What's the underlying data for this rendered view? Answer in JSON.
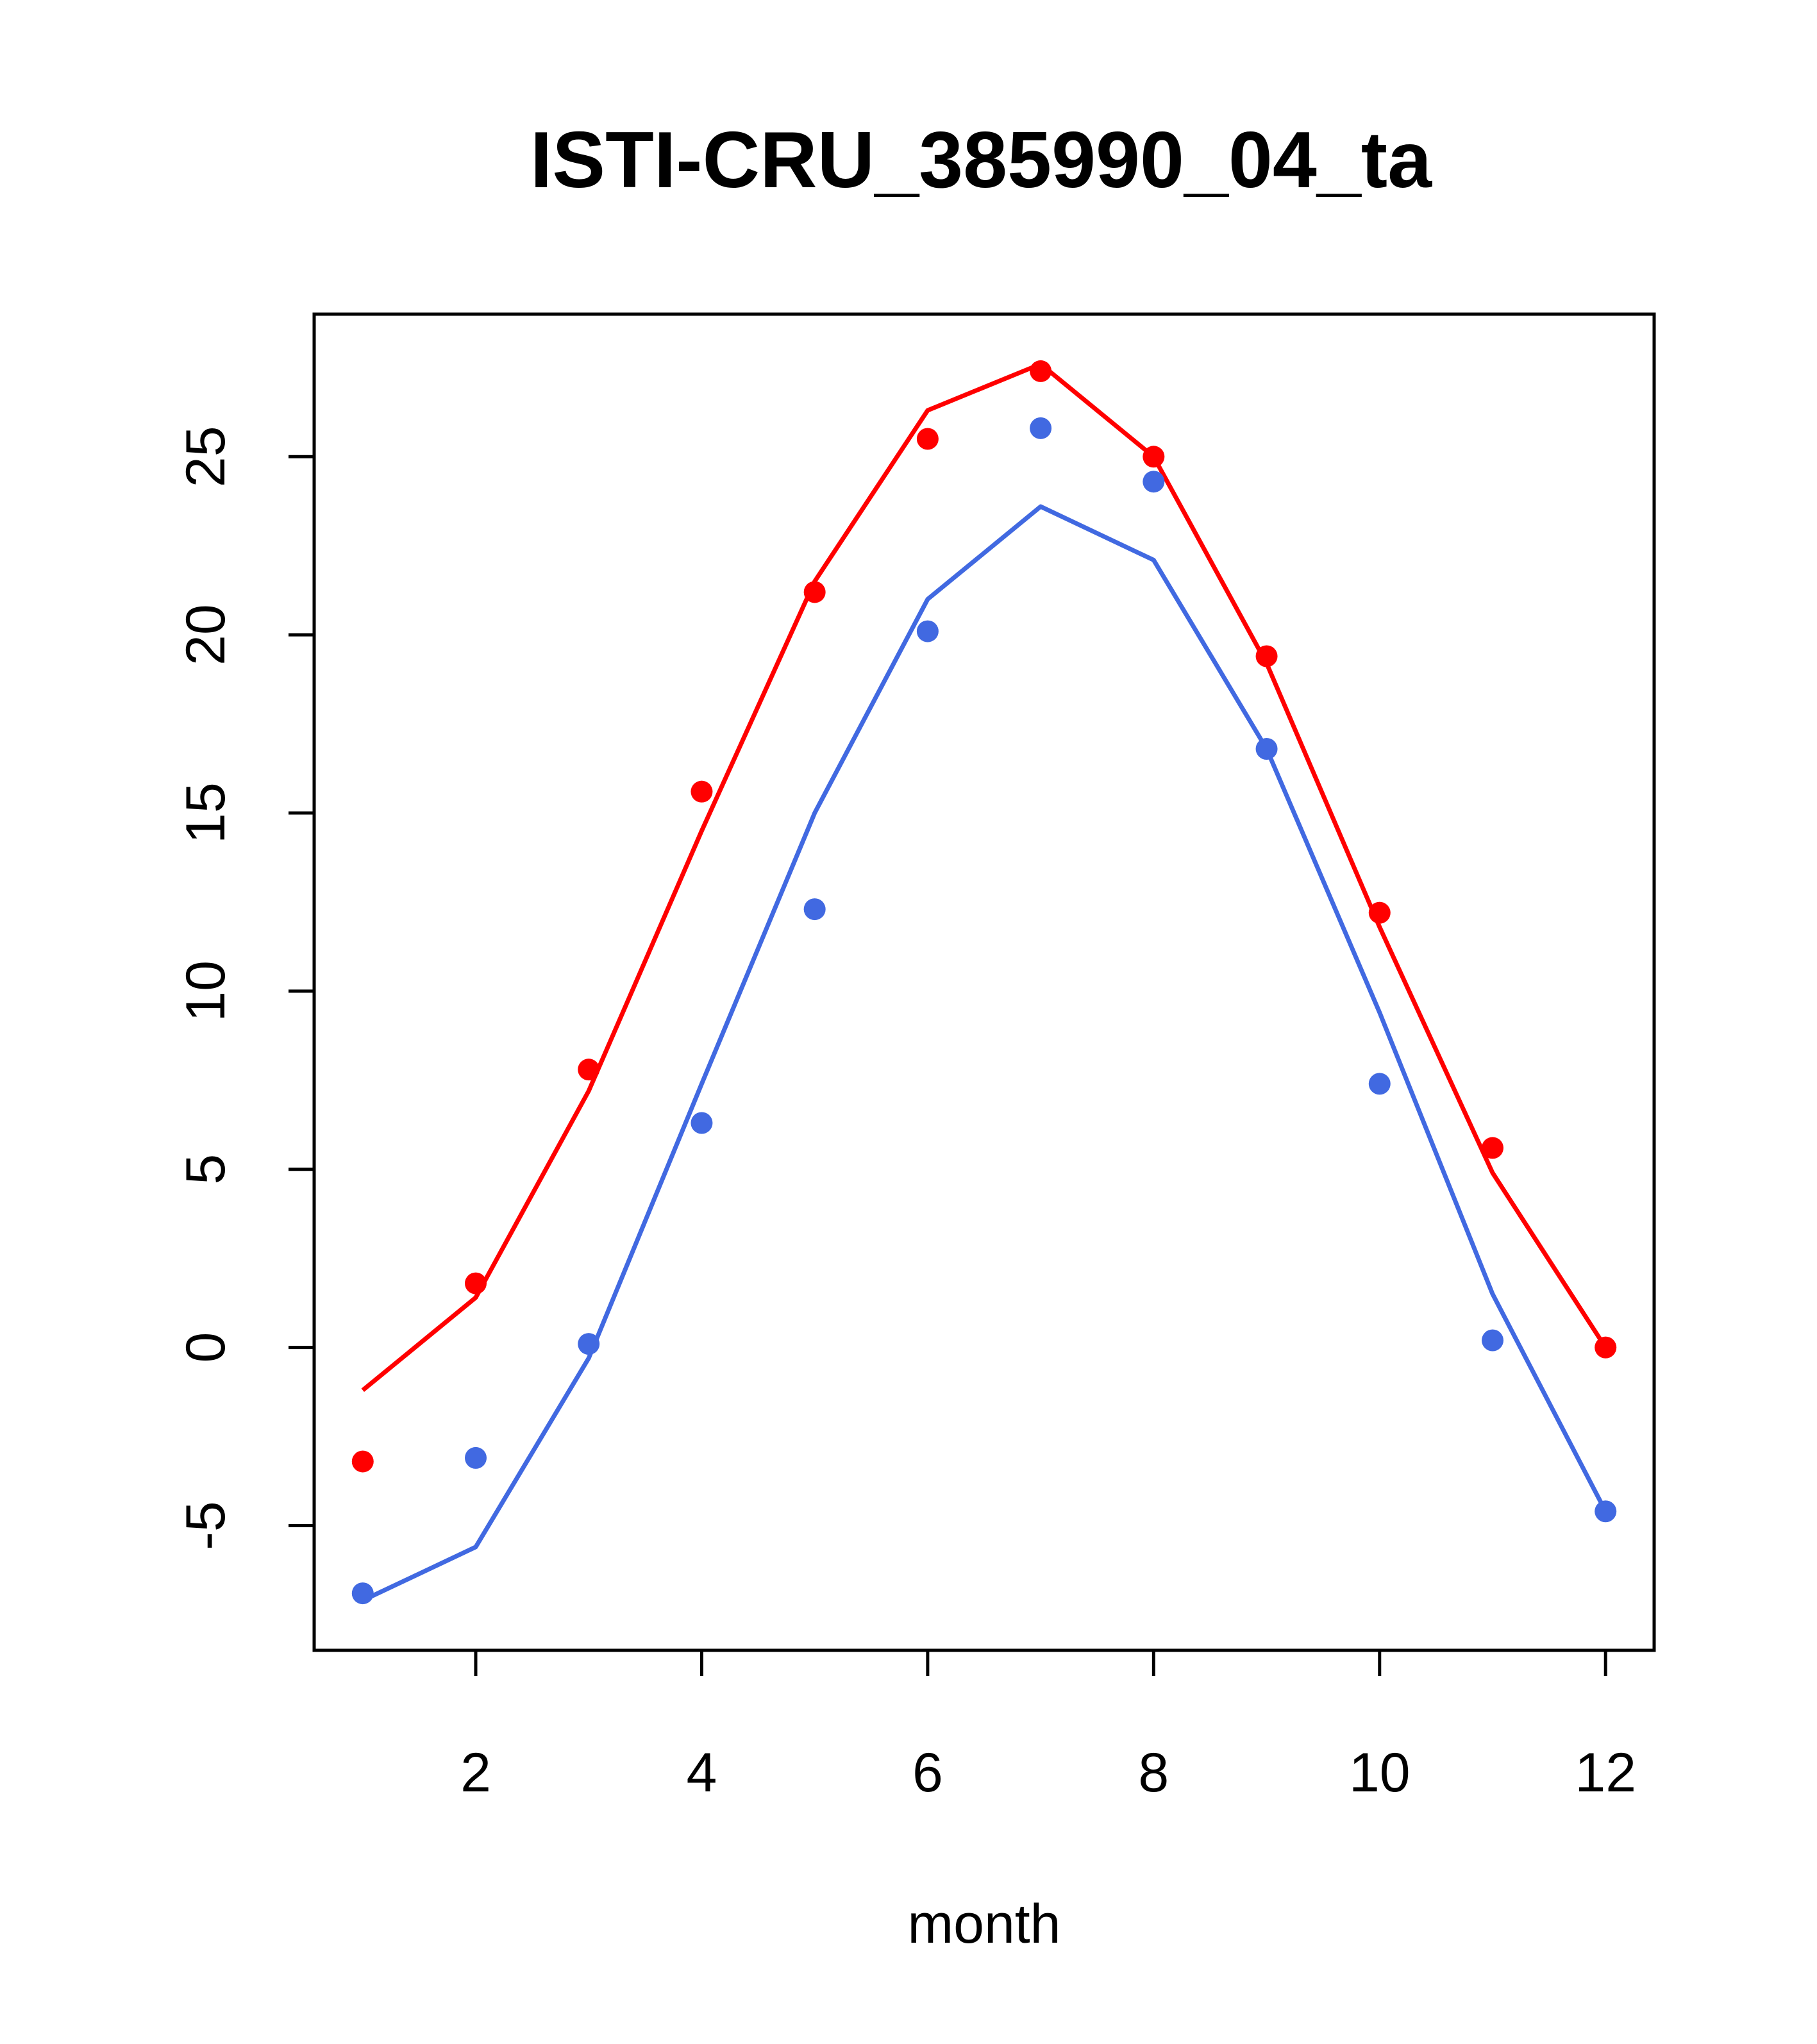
{
  "chart_data": {
    "type": "line",
    "title": "ISTI-CRU_385990_04_ta",
    "xlabel": "month",
    "ylabel": "",
    "xlim": [
      0.57,
      12.43
    ],
    "ylim": [
      -8.5,
      29.0
    ],
    "xticks": [
      2,
      4,
      6,
      8,
      10,
      12
    ],
    "yticks": [
      -5,
      0,
      5,
      10,
      15,
      20,
      25
    ],
    "grid": false,
    "series": [
      {
        "color": "#ff0000",
        "x": [
          1,
          2,
          3,
          4,
          5,
          6,
          7,
          8,
          9,
          10,
          11,
          12
        ],
        "line": [
          -1.2,
          1.4,
          7.2,
          14.5,
          21.5,
          26.3,
          27.6,
          25.0,
          19.2,
          11.8,
          4.9,
          0.0
        ],
        "points": [
          -3.2,
          1.8,
          7.8,
          15.6,
          21.2,
          25.5,
          27.4,
          25.0,
          19.4,
          12.2,
          5.6,
          0.0
        ]
      },
      {
        "color": "#4169e1",
        "x": [
          1,
          2,
          3,
          4,
          5,
          6,
          7,
          8,
          9,
          10,
          11,
          12
        ],
        "line": [
          -7.1,
          -5.6,
          -0.3,
          7.4,
          15.0,
          21.0,
          23.6,
          22.1,
          16.8,
          9.4,
          1.5,
          -4.6
        ],
        "points": [
          -6.9,
          -3.1,
          0.1,
          6.3,
          12.3,
          20.1,
          25.8,
          24.3,
          16.8,
          7.4,
          0.2,
          -4.6
        ]
      }
    ]
  }
}
